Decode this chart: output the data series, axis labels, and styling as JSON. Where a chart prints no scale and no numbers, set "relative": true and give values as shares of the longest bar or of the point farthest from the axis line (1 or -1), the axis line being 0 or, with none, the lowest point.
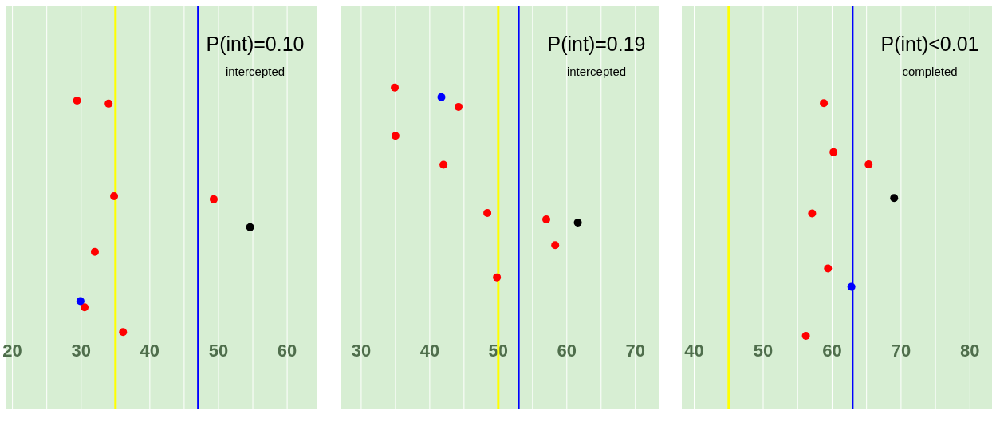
{
  "chart_data": [
    {
      "type": "scatter",
      "title": "P(int)=0.10",
      "subtitle": "intercepted",
      "relative": true,
      "xlim": [
        19,
        64.4
      ],
      "xticks": [
        20,
        {
          "value": 25,
          "label": null
        },
        30,
        {
          "value": 35,
          "label": null
        },
        40,
        {
          "value": 45,
          "label": null
        },
        50,
        {
          "value": 55,
          "label": null
        },
        60
      ],
      "tick_labels": "x",
      "grid": "x",
      "marker": "circle",
      "ref_lines": [
        {
          "axis": "x",
          "value": 35,
          "color": "#ffff00"
        },
        {
          "axis": "x",
          "value": 47,
          "color": "#0000ff"
        }
      ],
      "series": [
        {
          "color": "#ff0000",
          "x": [
            29.4,
            34.0,
            34.8,
            49.3,
            32.0,
            30.5,
            36.1
          ],
          "values": [
            1.0,
            0.99,
            0.69,
            0.68,
            0.51,
            0.33,
            0.25
          ]
        },
        {
          "color": "#0000ff",
          "x": [
            29.9
          ],
          "values": [
            0.35
          ]
        },
        {
          "color": "#000000",
          "x": [
            54.6
          ],
          "values": [
            0.59
          ]
        }
      ]
    },
    {
      "type": "scatter",
      "title": "P(int)=0.19",
      "subtitle": "intercepted",
      "relative": true,
      "xlim": [
        27.1,
        73.4
      ],
      "xticks": [
        30,
        {
          "value": 35,
          "label": null
        },
        40,
        {
          "value": 45,
          "label": null
        },
        50,
        {
          "value": 55,
          "label": null
        },
        60,
        {
          "value": 65,
          "label": null
        },
        70
      ],
      "tick_labels": "x",
      "grid": "x",
      "marker": "circle",
      "ref_lines": [
        {
          "axis": "x",
          "value": 50,
          "color": "#ffff00"
        },
        {
          "axis": "x",
          "value": 53,
          "color": "#0000ff"
        }
      ],
      "series": [
        {
          "color": "#ff0000",
          "x": [
            34.9,
            44.2,
            35.0,
            42.0,
            48.4,
            57.0,
            58.3,
            49.8
          ],
          "values": [
            1.0,
            0.94,
            0.85,
            0.76,
            0.61,
            0.59,
            0.51,
            0.41
          ]
        },
        {
          "color": "#0000ff",
          "x": [
            41.7
          ],
          "values": [
            0.97
          ]
        },
        {
          "color": "#000000",
          "x": [
            61.6
          ],
          "values": [
            0.58
          ]
        }
      ]
    },
    {
      "type": "scatter",
      "title": "P(int)<0.01",
      "subtitle": "completed",
      "relative": true,
      "xlim": [
        38.2,
        83.2
      ],
      "xticks": [
        40,
        {
          "value": 45,
          "label": null
        },
        50,
        {
          "value": 55,
          "label": null
        },
        60,
        {
          "value": 65,
          "label": null
        },
        70,
        {
          "value": 75,
          "label": null
        },
        80
      ],
      "tick_labels": "x",
      "grid": "x",
      "marker": "circle",
      "ref_lines": [
        {
          "axis": "x",
          "value": 45,
          "color": "#ffff00"
        },
        {
          "axis": "x",
          "value": 63,
          "color": "#0000ff"
        }
      ],
      "series": [
        {
          "color": "#ff0000",
          "x": [
            58.8,
            60.2,
            65.3,
            57.1,
            59.4,
            56.2
          ],
          "values": [
            1.0,
            0.84,
            0.8,
            0.64,
            0.46,
            0.24
          ]
        },
        {
          "color": "#0000ff",
          "x": [
            62.8
          ],
          "values": [
            0.4
          ]
        },
        {
          "color": "#000000",
          "x": [
            69.0
          ],
          "values": [
            0.69
          ]
        }
      ]
    }
  ]
}
